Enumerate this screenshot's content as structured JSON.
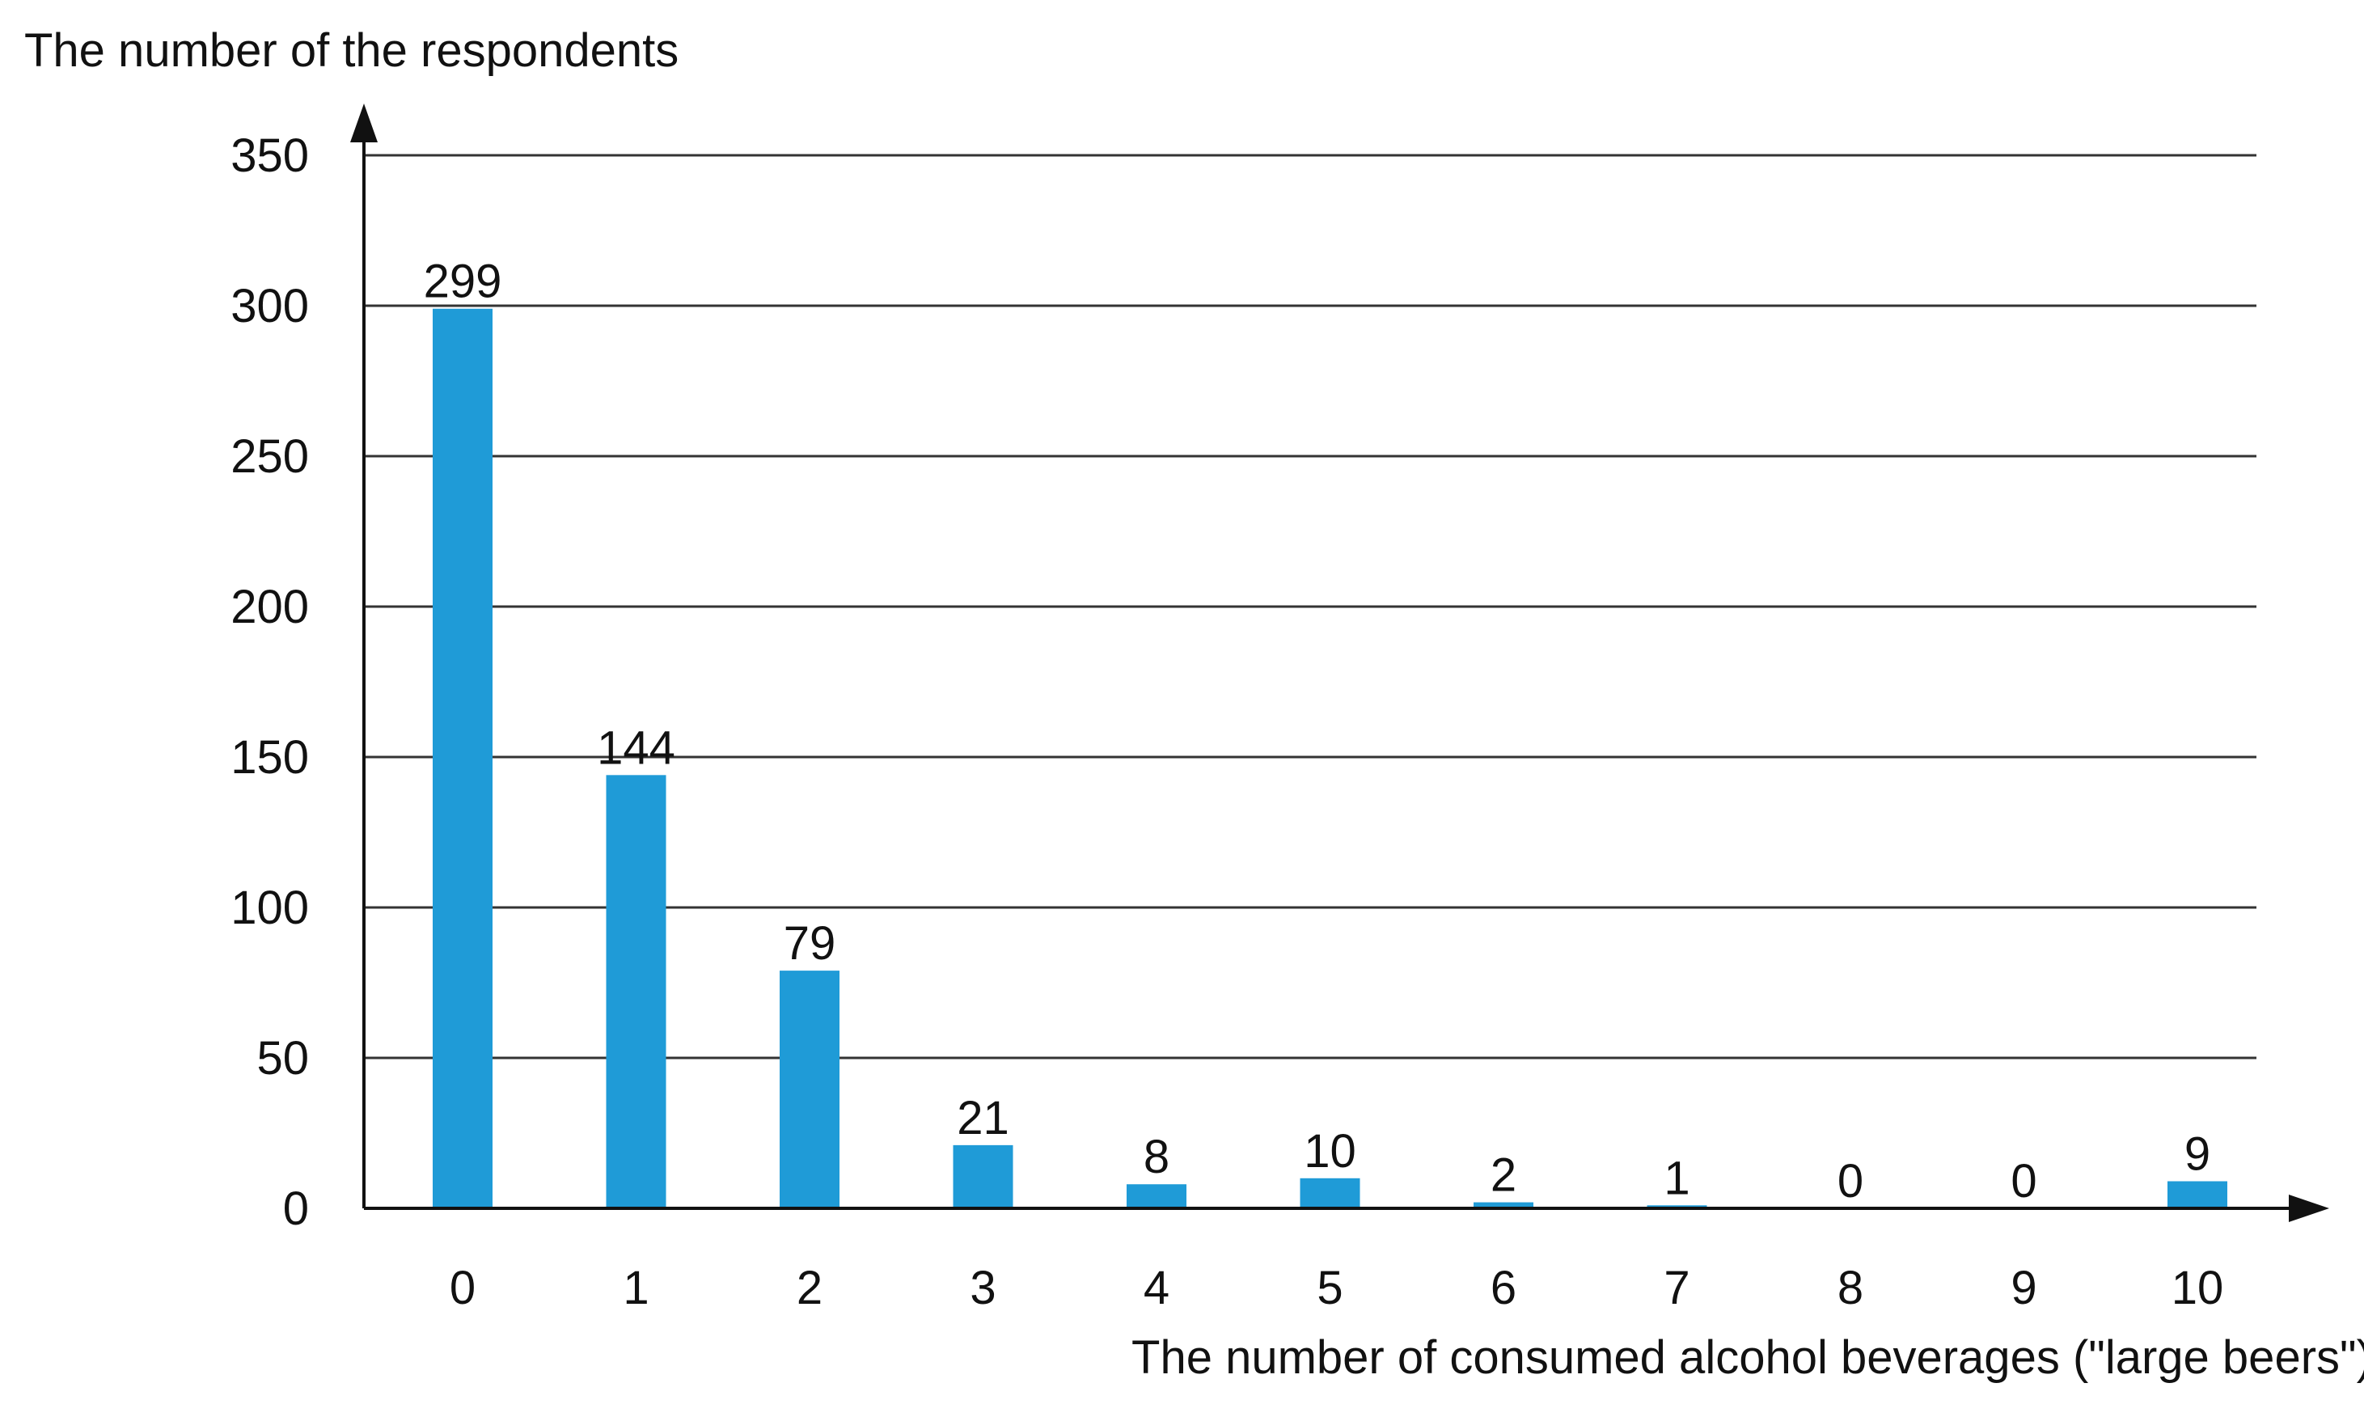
{
  "chart_data": {
    "type": "bar",
    "title": "",
    "ylabel": "The number of the respondents",
    "xlabel": "The number of consumed alcohol beverages (\"large beers\") declared by the respondents",
    "categories": [
      "0",
      "1",
      "2",
      "3",
      "4",
      "5",
      "6",
      "7",
      "8",
      "9",
      "10"
    ],
    "values": [
      299,
      144,
      79,
      21,
      8,
      10,
      2,
      1,
      0,
      0,
      9
    ],
    "data_labels": [
      "299",
      "144",
      "79",
      "21",
      "8",
      "10",
      "2",
      "1",
      "0",
      "0",
      "9"
    ],
    "ylim": [
      0,
      350
    ],
    "yticks": [
      0,
      50,
      100,
      150,
      200,
      250,
      300,
      350
    ],
    "ytick_labels": [
      "0",
      "50",
      "100",
      "150",
      "200",
      "250",
      "300",
      "350"
    ],
    "grid": true,
    "legend": "none",
    "colors": {
      "bar": "#1f9bd7",
      "grid": "#333333",
      "axis": "#111111"
    }
  }
}
